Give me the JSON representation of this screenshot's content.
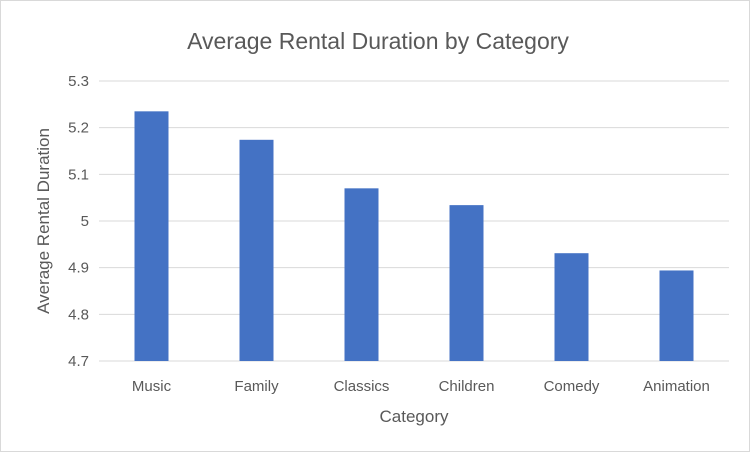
{
  "chart_data": {
    "type": "bar",
    "title": "Average Rental Duration by Category",
    "xlabel": "Category",
    "ylabel": "Average Rental Duration",
    "categories": [
      "Music",
      "Family",
      "Classics",
      "Children",
      "Comedy",
      "Animation"
    ],
    "values": [
      5.235,
      5.174,
      5.07,
      5.034,
      4.931,
      4.894
    ],
    "ylim": [
      4.7,
      5.3
    ],
    "yticks": [
      "4.7",
      "4.8",
      "4.9",
      "5",
      "5.1",
      "5.2",
      "5.3"
    ],
    "grid": true,
    "legend": "none",
    "bar_color": "#4472c4"
  }
}
